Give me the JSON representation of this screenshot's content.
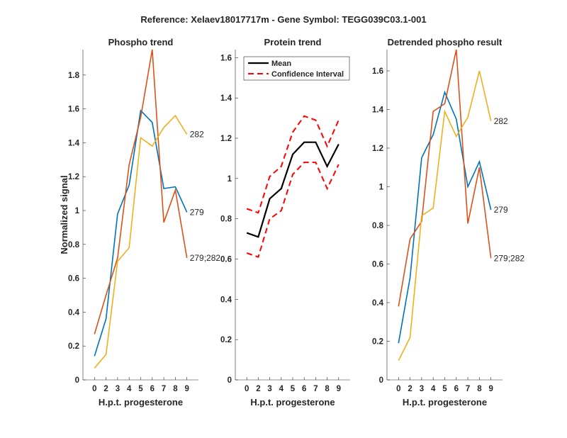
{
  "suptitle": "Reference:  Xelaev18017717m - Gene Symbol:  TEGG039C03.1-001",
  "colors": {
    "s279": "#0072BD",
    "s279_282": "#D95319",
    "s282": "#EDB120",
    "mean": "#000000",
    "ci": "#FF0000"
  },
  "chart_data": [
    {
      "type": "line",
      "title": "Phospho trend",
      "xlabel": "H.p.t. progesterone",
      "ylabel": "Normalized signal",
      "categories": [
        "0",
        "2",
        "3",
        "4",
        "5",
        "6",
        "7",
        "8",
        "9"
      ],
      "xlim": [
        0,
        10
      ],
      "ylim": [
        0,
        1.95
      ],
      "yticks": [
        0,
        0.2,
        0.4,
        0.6,
        0.8,
        1,
        1.2,
        1.4,
        1.6,
        1.8
      ],
      "ytick_labels": [
        "0",
        "0.2",
        "0.4",
        "0.6",
        "0.8",
        "1",
        "1.2",
        "1.4",
        "1.6",
        "1.8"
      ],
      "series": [
        {
          "name": "279",
          "color_key": "s279",
          "values": [
            0.14,
            0.36,
            0.98,
            1.15,
            1.59,
            1.52,
            1.13,
            1.14,
            0.99
          ]
        },
        {
          "name": "279;282",
          "color_key": "s279_282",
          "values": [
            0.27,
            0.5,
            0.72,
            1.27,
            1.55,
            1.95,
            0.93,
            1.12,
            0.72
          ]
        },
        {
          "name": "282",
          "color_key": "s282",
          "values": [
            0.07,
            0.15,
            0.7,
            0.78,
            1.43,
            1.38,
            1.49,
            1.56,
            1.45
          ]
        }
      ]
    },
    {
      "type": "line",
      "title": "Protein trend",
      "xlabel": "H.p.t. progesterone",
      "ylabel": "",
      "categories": [
        "0",
        "2",
        "3",
        "4",
        "5",
        "6",
        "7",
        "8",
        "9"
      ],
      "xlim": [
        0,
        10
      ],
      "ylim": [
        0,
        1.64
      ],
      "yticks": [
        0,
        0.2,
        0.4,
        0.6,
        0.8,
        1,
        1.2,
        1.4,
        1.6
      ],
      "ytick_labels": [
        "0",
        "0.2",
        "0.4",
        "0.6",
        "0.8",
        "1",
        "1.2",
        "1.4",
        "1.6"
      ],
      "legend": {
        "position": "top-left",
        "entries": [
          "Mean",
          "Confidence Interval"
        ]
      },
      "series": [
        {
          "name": "Mean",
          "color_key": "mean",
          "dash": false,
          "values": [
            0.73,
            0.71,
            0.9,
            0.95,
            1.12,
            1.18,
            1.18,
            1.06,
            1.17
          ]
        },
        {
          "name": "Confidence Interval",
          "color_key": "ci",
          "dash": true,
          "values": [
            0.85,
            0.83,
            1.01,
            1.06,
            1.23,
            1.31,
            1.29,
            1.16,
            1.29
          ]
        },
        {
          "name": "Confidence Interval (lower)",
          "color_key": "ci",
          "dash": true,
          "values": [
            0.63,
            0.61,
            0.8,
            0.84,
            1.02,
            1.08,
            1.08,
            0.95,
            1.07
          ]
        }
      ]
    },
    {
      "type": "line",
      "title": "Detrended phospho result",
      "xlabel": "H.p.t. progesterone",
      "ylabel": "",
      "categories": [
        "0",
        "2",
        "3",
        "4",
        "5",
        "6",
        "7",
        "8",
        "9"
      ],
      "xlim": [
        0,
        10
      ],
      "ylim": [
        0,
        1.71
      ],
      "yticks": [
        0,
        0.2,
        0.4,
        0.6,
        0.8,
        1,
        1.2,
        1.4,
        1.6
      ],
      "ytick_labels": [
        "0",
        "0.2",
        "0.4",
        "0.6",
        "0.8",
        "1",
        "1.2",
        "1.4",
        "1.6"
      ],
      "series": [
        {
          "name": "279",
          "color_key": "s279",
          "values": [
            0.19,
            0.53,
            1.15,
            1.27,
            1.49,
            1.35,
            1.0,
            1.13,
            0.88
          ]
        },
        {
          "name": "279;282",
          "color_key": "s279_282",
          "values": [
            0.38,
            0.73,
            0.82,
            1.39,
            1.43,
            1.71,
            0.81,
            1.1,
            0.63
          ]
        },
        {
          "name": "282",
          "color_key": "s282",
          "values": [
            0.1,
            0.22,
            0.85,
            0.89,
            1.39,
            1.26,
            1.36,
            1.6,
            1.34
          ]
        }
      ]
    }
  ]
}
